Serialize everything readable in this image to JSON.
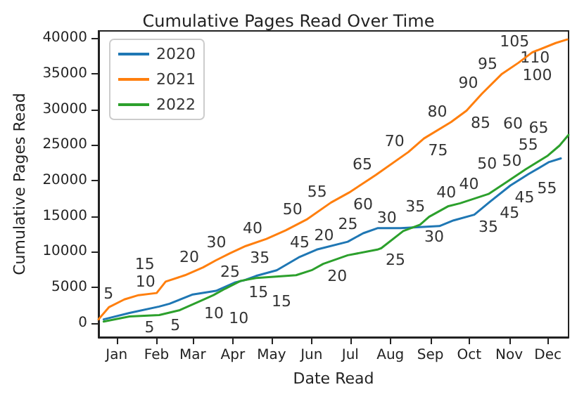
{
  "chart_data": {
    "type": "line",
    "title": "Cumulative Pages Read Over Time",
    "xlabel": "Date Read",
    "ylabel": "Cumulative Pages Read",
    "legend": "top left",
    "xlim": [
      "--01-01",
      "--12-31"
    ],
    "ylim": [
      -2000,
      41000
    ],
    "xticks": [
      {
        "value": "--01-15",
        "label": "Jan"
      },
      {
        "value": "--02-15",
        "label": "Feb"
      },
      {
        "value": "--03-15",
        "label": "Mar"
      },
      {
        "value": "--04-15",
        "label": "Apr"
      },
      {
        "value": "--05-15",
        "label": "May"
      },
      {
        "value": "--06-15",
        "label": "Jun"
      },
      {
        "value": "--07-15",
        "label": "Jul"
      },
      {
        "value": "--08-15",
        "label": "Aug"
      },
      {
        "value": "--09-15",
        "label": "Sep"
      },
      {
        "value": "--10-15",
        "label": "Oct"
      },
      {
        "value": "--11-15",
        "label": "Nov"
      },
      {
        "value": "--12-15",
        "label": "Dec"
      }
    ],
    "yticks": [
      0,
      5000,
      10000,
      15000,
      20000,
      25000,
      30000,
      35000,
      40000
    ],
    "series": [
      {
        "name": "2020",
        "color": "#1f77b4",
        "x": [
          "--01-05",
          "--01-25",
          "--02-17",
          "--02-25",
          "--03-15",
          "--04-02",
          "--04-17",
          "--04-24",
          "--05-03",
          "--05-19",
          "--06-05",
          "--06-19",
          "--07-13",
          "--07-25",
          "--08-05",
          "--08-23",
          "--09-22",
          "--10-03",
          "--10-19",
          "--10-31",
          "--11-16",
          "--11-30",
          "--12-16",
          "--12-25"
        ],
        "values": [
          500,
          1400,
          2300,
          2700,
          4000,
          4500,
          5700,
          6000,
          6600,
          7400,
          9200,
          10300,
          11400,
          12600,
          13300,
          13300,
          13600,
          14400,
          15200,
          17000,
          19300,
          20900,
          22600,
          23100
        ]
      },
      {
        "name": "2021",
        "color": "#ff7f0e",
        "x": [
          "--01-01",
          "--01-09",
          "--01-21",
          "--02-01",
          "--02-15",
          "--02-22",
          "--03-09",
          "--03-23",
          "--04-02",
          "--04-13",
          "--04-25",
          "--05-11",
          "--05-26",
          "--06-11",
          "--06-30",
          "--07-14",
          "--08-04",
          "--08-29",
          "--09-10",
          "--10-01",
          "--10-13",
          "--10-25",
          "--11-09",
          "--11-22",
          "--12-03",
          "--12-21",
          "--12-30"
        ],
        "values": [
          500,
          2200,
          3300,
          3900,
          4200,
          5800,
          6700,
          7800,
          8800,
          9800,
          10800,
          11800,
          13000,
          14500,
          16900,
          18300,
          20800,
          24000,
          25900,
          28200,
          29800,
          32200,
          34900,
          36500,
          38000,
          39300,
          39800
        ]
      },
      {
        "name": "2022",
        "color": "#2ca02c",
        "x": [
          "--01-05",
          "--01-25",
          "--02-17",
          "--03-05",
          "--03-21",
          "--03-31",
          "--04-09",
          "--04-21",
          "--05-03",
          "--06-03",
          "--06-15",
          "--06-24",
          "--07-13",
          "--08-05",
          "--08-08",
          "--08-25",
          "--09-07",
          "--09-14",
          "--09-29",
          "--10-08",
          "--10-30",
          "--11-14",
          "--11-28",
          "--12-15",
          "--12-24",
          "--12-31"
        ],
        "values": [
          200,
          900,
          1100,
          1800,
          3100,
          3900,
          4800,
          5900,
          6300,
          6700,
          7400,
          8300,
          9500,
          10300,
          10500,
          12900,
          13800,
          14900,
          16400,
          16800,
          18100,
          19900,
          21600,
          23500,
          24900,
          26400
        ]
      }
    ],
    "annotations": [
      {
        "text": "5",
        "x": "--01-09",
        "y": 2200
      },
      {
        "text": "10",
        "x": "--01-21",
        "y": 3300
      },
      {
        "text": "15",
        "x": "--02-22",
        "y": 5800
      },
      {
        "text": "20",
        "x": "--03-23",
        "y": 7800
      },
      {
        "text": "25",
        "x": "--04-02",
        "y": 8800
      },
      {
        "text": "30",
        "x": "--04-13",
        "y": 9800
      },
      {
        "text": "35",
        "x": "--04-25",
        "y": 10800
      },
      {
        "text": "40",
        "x": "--05-11",
        "y": 11800
      },
      {
        "text": "45",
        "x": "--05-26",
        "y": 13000
      },
      {
        "text": "50",
        "x": "--06-11",
        "y": 14500
      },
      {
        "text": "55",
        "x": "--06-30",
        "y": 16900
      },
      {
        "text": "60",
        "x": "--07-14",
        "y": 18300
      },
      {
        "text": "65",
        "x": "--08-04",
        "y": 20800
      },
      {
        "text": "70",
        "x": "--08-29",
        "y": 24000
      },
      {
        "text": "75",
        "x": "--09-10",
        "y": 25900
      },
      {
        "text": "80",
        "x": "--10-01",
        "y": 28200
      },
      {
        "text": "85",
        "x": "--10-13",
        "y": 29800
      },
      {
        "text": "90",
        "x": "--10-25",
        "y": 32200
      },
      {
        "text": "95",
        "x": "--11-09",
        "y": 34900
      },
      {
        "text": "100",
        "x": "--11-22",
        "y": 36500
      },
      {
        "text": "105",
        "x": "--12-03",
        "y": 38000
      },
      {
        "text": "110",
        "x": "--12-21",
        "y": 39300
      },
      {
        "text": "5",
        "x": "--02-17",
        "y": 2300
      },
      {
        "text": "10",
        "x": "--03-15",
        "y": 4000
      },
      {
        "text": "15",
        "x": "--04-24",
        "y": 6000
      },
      {
        "text": "20",
        "x": "--06-05",
        "y": 9200
      },
      {
        "text": "25",
        "x": "--07-13",
        "y": 11400
      },
      {
        "text": "30",
        "x": "--08-23",
        "y": 13300
      },
      {
        "text": "35",
        "x": "--10-19",
        "y": 15200
      },
      {
        "text": "40",
        "x": "--10-31",
        "y": 17000
      },
      {
        "text": "45",
        "x": "--11-16",
        "y": 19300
      },
      {
        "text": "50",
        "x": "--11-30",
        "y": 20900
      },
      {
        "text": "55",
        "x": "--12-16",
        "y": 22600
      },
      {
        "text": "5",
        "x": "--02-17",
        "y": 1100
      },
      {
        "text": "10",
        "x": "--03-31",
        "y": 3900
      },
      {
        "text": "15",
        "x": "--05-03",
        "y": 6300
      },
      {
        "text": "20",
        "x": "--06-24",
        "y": 8300
      },
      {
        "text": "25",
        "x": "--08-08",
        "y": 10500
      },
      {
        "text": "30",
        "x": "--09-07",
        "y": 13800
      },
      {
        "text": "35",
        "x": "--09-14",
        "y": 14900
      },
      {
        "text": "40",
        "x": "--10-08",
        "y": 16800
      },
      {
        "text": "45",
        "x": "--10-30",
        "y": 18100
      },
      {
        "text": "50",
        "x": "--11-14",
        "y": 19900
      },
      {
        "text": "55",
        "x": "--11-28",
        "y": 21600
      },
      {
        "text": "60",
        "x": "--12-15",
        "y": 23500
      },
      {
        "text": "65",
        "x": "--12-24",
        "y": 24900
      }
    ]
  }
}
